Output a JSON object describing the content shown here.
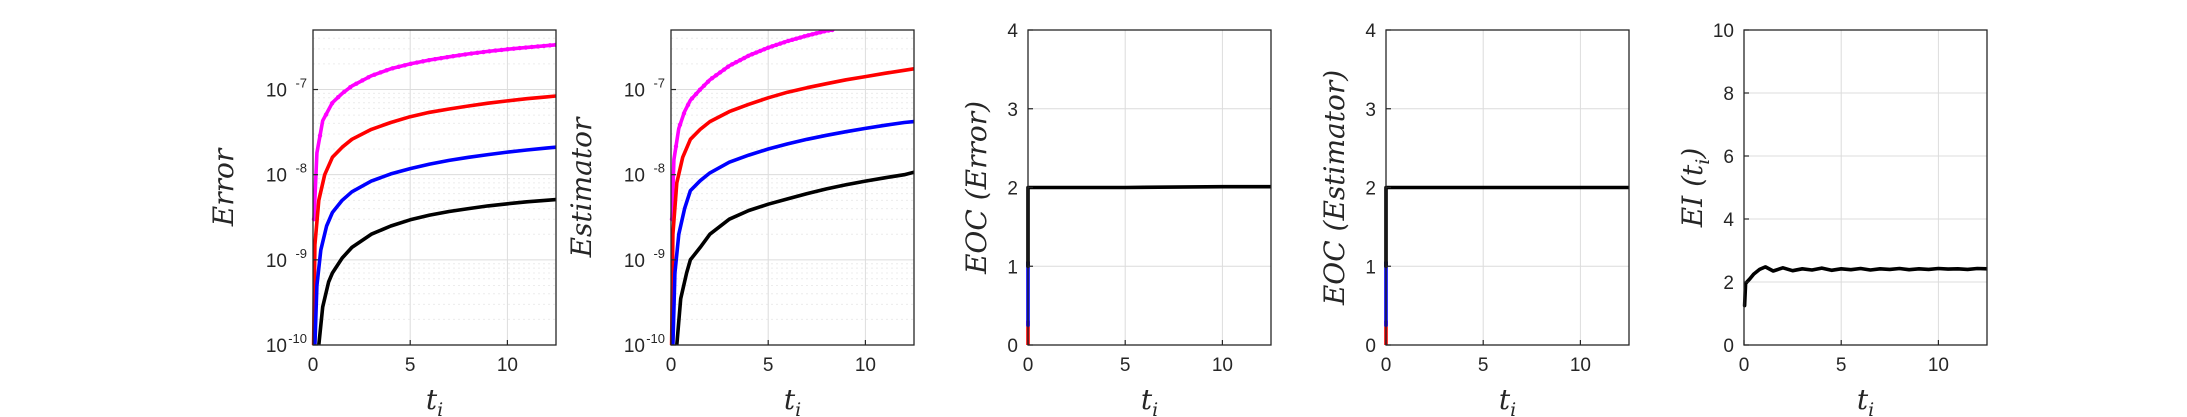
{
  "chart_data": [
    {
      "type": "line",
      "xlabel": "t",
      "xlabel_sub": "i",
      "ylabel": "Error",
      "yscale": "log",
      "xlim": [
        0,
        12.5
      ],
      "ylim": [
        1e-10,
        5e-07
      ],
      "xticks": [
        0,
        5,
        10
      ],
      "yticks": [
        1e-10,
        1e-09,
        1e-08,
        1e-07
      ],
      "yticklabels": [
        [
          "10",
          "-10"
        ],
        [
          "10",
          "-9"
        ],
        [
          "10",
          "-8"
        ],
        [
          "10",
          "-7"
        ]
      ],
      "grid": true,
      "series": [
        {
          "color": "#ff00ff",
          "marker": "dot",
          "x": [
            0.05,
            0.2,
            0.5,
            1,
            1.5,
            2,
            3,
            4,
            5,
            6,
            7,
            8,
            9,
            10,
            11,
            12,
            12.5
          ],
          "y": [
            3e-09,
            1.8e-08,
            4.3e-08,
            7e-08,
            9e-08,
            1.1e-07,
            1.45e-07,
            1.75e-07,
            2e-07,
            2.22e-07,
            2.42e-07,
            2.62e-07,
            2.8e-07,
            2.97e-07,
            3.12e-07,
            3.27e-07,
            3.35e-07
          ]
        },
        {
          "color": "#ff0000",
          "x": [
            0.03,
            0.1,
            0.3,
            0.6,
            1,
            1.5,
            2,
            3,
            4,
            5,
            6,
            7,
            8,
            9,
            10,
            11,
            12,
            12.5
          ],
          "y": [
            1e-10,
            1.5e-09,
            5e-09,
            1e-08,
            1.6e-08,
            2.1e-08,
            2.6e-08,
            3.4e-08,
            4.1e-08,
            4.8e-08,
            5.4e-08,
            5.9e-08,
            6.4e-08,
            6.9e-08,
            7.35e-08,
            7.8e-08,
            8.2e-08,
            8.4e-08
          ]
        },
        {
          "color": "#0000ff",
          "x": [
            0.1,
            0.2,
            0.4,
            0.7,
            1,
            1.5,
            2,
            3,
            4,
            5,
            6,
            7,
            8,
            9,
            10,
            11,
            12,
            12.5
          ],
          "y": [
            1e-10,
            5e-10,
            1.3e-09,
            2.5e-09,
            3.6e-09,
            5e-09,
            6.3e-09,
            8.4e-09,
            1.02e-08,
            1.18e-08,
            1.33e-08,
            1.47e-08,
            1.6e-08,
            1.72e-08,
            1.84e-08,
            1.95e-08,
            2.05e-08,
            2.1e-08
          ]
        },
        {
          "color": "#000000",
          "x": [
            0.3,
            0.5,
            0.8,
            1,
            1.5,
            2,
            3,
            4,
            5,
            6,
            7,
            8,
            9,
            10,
            11,
            12,
            12.5
          ],
          "y": [
            1e-10,
            2.8e-10,
            5.5e-10,
            7e-10,
            1.05e-09,
            1.4e-09,
            2e-09,
            2.5e-09,
            2.95e-09,
            3.35e-09,
            3.7e-09,
            4e-09,
            4.3e-09,
            4.55e-09,
            4.8e-09,
            5e-09,
            5.1e-09
          ]
        }
      ]
    },
    {
      "type": "line",
      "xlabel": "t",
      "xlabel_sub": "i",
      "ylabel": "Estimator",
      "yscale": "log",
      "xlim": [
        0,
        12.5
      ],
      "ylim": [
        1e-10,
        5e-07
      ],
      "xticks": [
        0,
        5,
        10
      ],
      "yticks": [
        1e-10,
        1e-09,
        1e-08,
        1e-07
      ],
      "yticklabels": [
        [
          "10",
          "-10"
        ],
        [
          "10",
          "-9"
        ],
        [
          "10",
          "-8"
        ],
        [
          "10",
          "-7"
        ]
      ],
      "grid": true,
      "series": [
        {
          "color": "#ff00ff",
          "marker": "dot",
          "x": [
            0.05,
            0.15,
            0.4,
            0.7,
            1,
            1.5,
            2,
            3,
            4,
            5,
            6,
            7,
            8,
            8.3
          ],
          "y": [
            3e-09,
            1.5e-08,
            3.5e-08,
            5.5e-08,
            7.5e-08,
            1e-07,
            1.3e-07,
            1.9e-07,
            2.5e-07,
            3.1e-07,
            3.7e-07,
            4.3e-07,
            4.9e-07,
            5e-07
          ]
        },
        {
          "color": "#ff0000",
          "x": [
            0.03,
            0.1,
            0.3,
            0.6,
            1,
            1.5,
            2,
            3,
            4,
            5,
            6,
            7,
            8,
            9,
            10,
            11,
            12,
            12.5
          ],
          "y": [
            1e-10,
            2e-09,
            8e-09,
            1.6e-08,
            2.6e-08,
            3.4e-08,
            4.2e-08,
            5.5e-08,
            6.7e-08,
            8e-08,
            9.3e-08,
            1.05e-07,
            1.17e-07,
            1.3e-07,
            1.42e-07,
            1.55e-07,
            1.68e-07,
            1.75e-07
          ]
        },
        {
          "color": "#0000ff",
          "x": [
            0.1,
            0.2,
            0.4,
            0.7,
            1,
            1.5,
            2,
            3,
            4,
            5,
            6,
            7,
            8,
            9,
            10,
            11,
            12,
            12.5
          ],
          "y": [
            1e-10,
            7e-10,
            2e-09,
            4e-09,
            6.5e-09,
            8.5e-09,
            1.05e-08,
            1.4e-08,
            1.7e-08,
            2e-08,
            2.3e-08,
            2.6e-08,
            2.9e-08,
            3.2e-08,
            3.5e-08,
            3.8e-08,
            4.1e-08,
            4.2e-08
          ]
        },
        {
          "color": "#000000",
          "x": [
            0.3,
            0.5,
            0.8,
            1,
            1.5,
            2,
            3,
            4,
            5,
            6,
            7,
            8,
            9,
            10,
            11,
            12,
            12.5
          ],
          "y": [
            1e-10,
            3.5e-10,
            7e-10,
            1e-09,
            1.4e-09,
            2e-09,
            3e-09,
            3.8e-09,
            4.5e-09,
            5.2e-09,
            6e-09,
            6.8e-09,
            7.6e-09,
            8.4e-09,
            9.2e-09,
            1e-08,
            1.07e-08
          ]
        }
      ]
    },
    {
      "type": "line",
      "xlabel": "t",
      "xlabel_sub": "i",
      "ylabel": "EOC (Error)",
      "yscale": "linear",
      "xlim": [
        0,
        12.5
      ],
      "ylim": [
        0,
        4
      ],
      "xticks": [
        0,
        5,
        10
      ],
      "yticks": [
        0,
        1,
        2,
        3,
        4
      ],
      "grid": true,
      "series": [
        {
          "color": "#ff0000",
          "x": [
            0,
            0
          ],
          "y": [
            0,
            0.3
          ]
        },
        {
          "color": "#0000ff",
          "x": [
            0,
            0
          ],
          "y": [
            0.25,
            1.05
          ]
        },
        {
          "color": "#000000",
          "x": [
            0,
            0,
            0.2,
            5,
            10,
            12.5
          ],
          "y": [
            1.0,
            2.0,
            2.0,
            2.0,
            2.01,
            2.01
          ]
        }
      ]
    },
    {
      "type": "line",
      "xlabel": "t",
      "xlabel_sub": "i",
      "ylabel": "EOC (Estimator)",
      "yscale": "linear",
      "xlim": [
        0,
        12.5
      ],
      "ylim": [
        0,
        4
      ],
      "xticks": [
        0,
        5,
        10
      ],
      "yticks": [
        0,
        1,
        2,
        3,
        4
      ],
      "grid": true,
      "series": [
        {
          "color": "#ff0000",
          "x": [
            0,
            0
          ],
          "y": [
            0,
            0.3
          ]
        },
        {
          "color": "#0000ff",
          "x": [
            0,
            0
          ],
          "y": [
            0.25,
            1.05
          ]
        },
        {
          "color": "#000000",
          "x": [
            0,
            0,
            0.2,
            5,
            10,
            12.5
          ],
          "y": [
            1.0,
            2.0,
            2.0,
            2.0,
            2.0,
            2.0
          ]
        }
      ]
    },
    {
      "type": "line",
      "xlabel": "t",
      "xlabel_sub": "i",
      "ylabel": "EI (t",
      "ylabel_sub": "i",
      "ylabel_end": ")",
      "yscale": "linear",
      "xlim": [
        0,
        12.5
      ],
      "ylim": [
        0,
        10
      ],
      "xticks": [
        0,
        5,
        10
      ],
      "yticks": [
        0,
        2,
        4,
        6,
        8,
        10
      ],
      "grid": true,
      "series": [
        {
          "color": "#000000",
          "x": [
            0.03,
            0.08,
            0.15,
            0.3,
            0.5,
            0.8,
            1.1,
            1.5,
            2,
            2.5,
            3,
            3.5,
            4,
            4.5,
            5,
            5.5,
            6,
            6.5,
            7,
            7.5,
            8,
            8.5,
            9,
            9.5,
            10,
            10.5,
            11,
            11.5,
            12,
            12.5
          ],
          "y": [
            1.25,
            1.95,
            2.0,
            2.1,
            2.25,
            2.4,
            2.48,
            2.35,
            2.45,
            2.36,
            2.42,
            2.38,
            2.44,
            2.37,
            2.42,
            2.39,
            2.43,
            2.38,
            2.42,
            2.4,
            2.43,
            2.39,
            2.42,
            2.4,
            2.43,
            2.41,
            2.42,
            2.4,
            2.43,
            2.42
          ]
        }
      ]
    }
  ]
}
